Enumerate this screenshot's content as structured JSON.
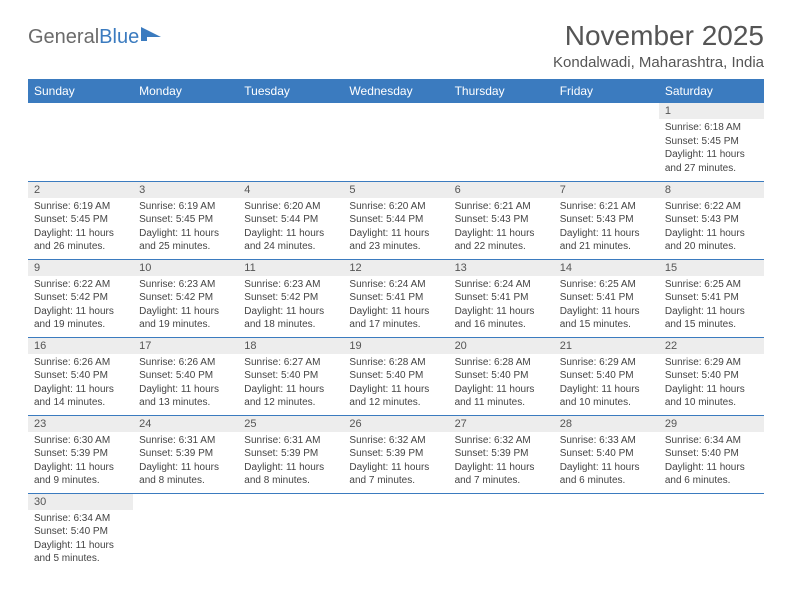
{
  "brand": {
    "part1": "General",
    "part2": "Blue"
  },
  "title": "November 2025",
  "location": "Kondalwadi, Maharashtra, India",
  "colors": {
    "header_bg": "#3b7bbf",
    "header_text": "#ffffff",
    "daynum_bg": "#ededed",
    "border": "#3b7bbf",
    "title_color": "#555555",
    "body_text": "#444444"
  },
  "weekdays": [
    "Sunday",
    "Monday",
    "Tuesday",
    "Wednesday",
    "Thursday",
    "Friday",
    "Saturday"
  ],
  "weeks": [
    [
      {
        "n": "",
        "sr": "",
        "ss": "",
        "dl": ""
      },
      {
        "n": "",
        "sr": "",
        "ss": "",
        "dl": ""
      },
      {
        "n": "",
        "sr": "",
        "ss": "",
        "dl": ""
      },
      {
        "n": "",
        "sr": "",
        "ss": "",
        "dl": ""
      },
      {
        "n": "",
        "sr": "",
        "ss": "",
        "dl": ""
      },
      {
        "n": "",
        "sr": "",
        "ss": "",
        "dl": ""
      },
      {
        "n": "1",
        "sr": "Sunrise: 6:18 AM",
        "ss": "Sunset: 5:45 PM",
        "dl": "Daylight: 11 hours and 27 minutes."
      }
    ],
    [
      {
        "n": "2",
        "sr": "Sunrise: 6:19 AM",
        "ss": "Sunset: 5:45 PM",
        "dl": "Daylight: 11 hours and 26 minutes."
      },
      {
        "n": "3",
        "sr": "Sunrise: 6:19 AM",
        "ss": "Sunset: 5:45 PM",
        "dl": "Daylight: 11 hours and 25 minutes."
      },
      {
        "n": "4",
        "sr": "Sunrise: 6:20 AM",
        "ss": "Sunset: 5:44 PM",
        "dl": "Daylight: 11 hours and 24 minutes."
      },
      {
        "n": "5",
        "sr": "Sunrise: 6:20 AM",
        "ss": "Sunset: 5:44 PM",
        "dl": "Daylight: 11 hours and 23 minutes."
      },
      {
        "n": "6",
        "sr": "Sunrise: 6:21 AM",
        "ss": "Sunset: 5:43 PM",
        "dl": "Daylight: 11 hours and 22 minutes."
      },
      {
        "n": "7",
        "sr": "Sunrise: 6:21 AM",
        "ss": "Sunset: 5:43 PM",
        "dl": "Daylight: 11 hours and 21 minutes."
      },
      {
        "n": "8",
        "sr": "Sunrise: 6:22 AM",
        "ss": "Sunset: 5:43 PM",
        "dl": "Daylight: 11 hours and 20 minutes."
      }
    ],
    [
      {
        "n": "9",
        "sr": "Sunrise: 6:22 AM",
        "ss": "Sunset: 5:42 PM",
        "dl": "Daylight: 11 hours and 19 minutes."
      },
      {
        "n": "10",
        "sr": "Sunrise: 6:23 AM",
        "ss": "Sunset: 5:42 PM",
        "dl": "Daylight: 11 hours and 19 minutes."
      },
      {
        "n": "11",
        "sr": "Sunrise: 6:23 AM",
        "ss": "Sunset: 5:42 PM",
        "dl": "Daylight: 11 hours and 18 minutes."
      },
      {
        "n": "12",
        "sr": "Sunrise: 6:24 AM",
        "ss": "Sunset: 5:41 PM",
        "dl": "Daylight: 11 hours and 17 minutes."
      },
      {
        "n": "13",
        "sr": "Sunrise: 6:24 AM",
        "ss": "Sunset: 5:41 PM",
        "dl": "Daylight: 11 hours and 16 minutes."
      },
      {
        "n": "14",
        "sr": "Sunrise: 6:25 AM",
        "ss": "Sunset: 5:41 PM",
        "dl": "Daylight: 11 hours and 15 minutes."
      },
      {
        "n": "15",
        "sr": "Sunrise: 6:25 AM",
        "ss": "Sunset: 5:41 PM",
        "dl": "Daylight: 11 hours and 15 minutes."
      }
    ],
    [
      {
        "n": "16",
        "sr": "Sunrise: 6:26 AM",
        "ss": "Sunset: 5:40 PM",
        "dl": "Daylight: 11 hours and 14 minutes."
      },
      {
        "n": "17",
        "sr": "Sunrise: 6:26 AM",
        "ss": "Sunset: 5:40 PM",
        "dl": "Daylight: 11 hours and 13 minutes."
      },
      {
        "n": "18",
        "sr": "Sunrise: 6:27 AM",
        "ss": "Sunset: 5:40 PM",
        "dl": "Daylight: 11 hours and 12 minutes."
      },
      {
        "n": "19",
        "sr": "Sunrise: 6:28 AM",
        "ss": "Sunset: 5:40 PM",
        "dl": "Daylight: 11 hours and 12 minutes."
      },
      {
        "n": "20",
        "sr": "Sunrise: 6:28 AM",
        "ss": "Sunset: 5:40 PM",
        "dl": "Daylight: 11 hours and 11 minutes."
      },
      {
        "n": "21",
        "sr": "Sunrise: 6:29 AM",
        "ss": "Sunset: 5:40 PM",
        "dl": "Daylight: 11 hours and 10 minutes."
      },
      {
        "n": "22",
        "sr": "Sunrise: 6:29 AM",
        "ss": "Sunset: 5:40 PM",
        "dl": "Daylight: 11 hours and 10 minutes."
      }
    ],
    [
      {
        "n": "23",
        "sr": "Sunrise: 6:30 AM",
        "ss": "Sunset: 5:39 PM",
        "dl": "Daylight: 11 hours and 9 minutes."
      },
      {
        "n": "24",
        "sr": "Sunrise: 6:31 AM",
        "ss": "Sunset: 5:39 PM",
        "dl": "Daylight: 11 hours and 8 minutes."
      },
      {
        "n": "25",
        "sr": "Sunrise: 6:31 AM",
        "ss": "Sunset: 5:39 PM",
        "dl": "Daylight: 11 hours and 8 minutes."
      },
      {
        "n": "26",
        "sr": "Sunrise: 6:32 AM",
        "ss": "Sunset: 5:39 PM",
        "dl": "Daylight: 11 hours and 7 minutes."
      },
      {
        "n": "27",
        "sr": "Sunrise: 6:32 AM",
        "ss": "Sunset: 5:39 PM",
        "dl": "Daylight: 11 hours and 7 minutes."
      },
      {
        "n": "28",
        "sr": "Sunrise: 6:33 AM",
        "ss": "Sunset: 5:40 PM",
        "dl": "Daylight: 11 hours and 6 minutes."
      },
      {
        "n": "29",
        "sr": "Sunrise: 6:34 AM",
        "ss": "Sunset: 5:40 PM",
        "dl": "Daylight: 11 hours and 6 minutes."
      }
    ],
    [
      {
        "n": "30",
        "sr": "Sunrise: 6:34 AM",
        "ss": "Sunset: 5:40 PM",
        "dl": "Daylight: 11 hours and 5 minutes."
      },
      {
        "n": "",
        "sr": "",
        "ss": "",
        "dl": ""
      },
      {
        "n": "",
        "sr": "",
        "ss": "",
        "dl": ""
      },
      {
        "n": "",
        "sr": "",
        "ss": "",
        "dl": ""
      },
      {
        "n": "",
        "sr": "",
        "ss": "",
        "dl": ""
      },
      {
        "n": "",
        "sr": "",
        "ss": "",
        "dl": ""
      },
      {
        "n": "",
        "sr": "",
        "ss": "",
        "dl": ""
      }
    ]
  ]
}
